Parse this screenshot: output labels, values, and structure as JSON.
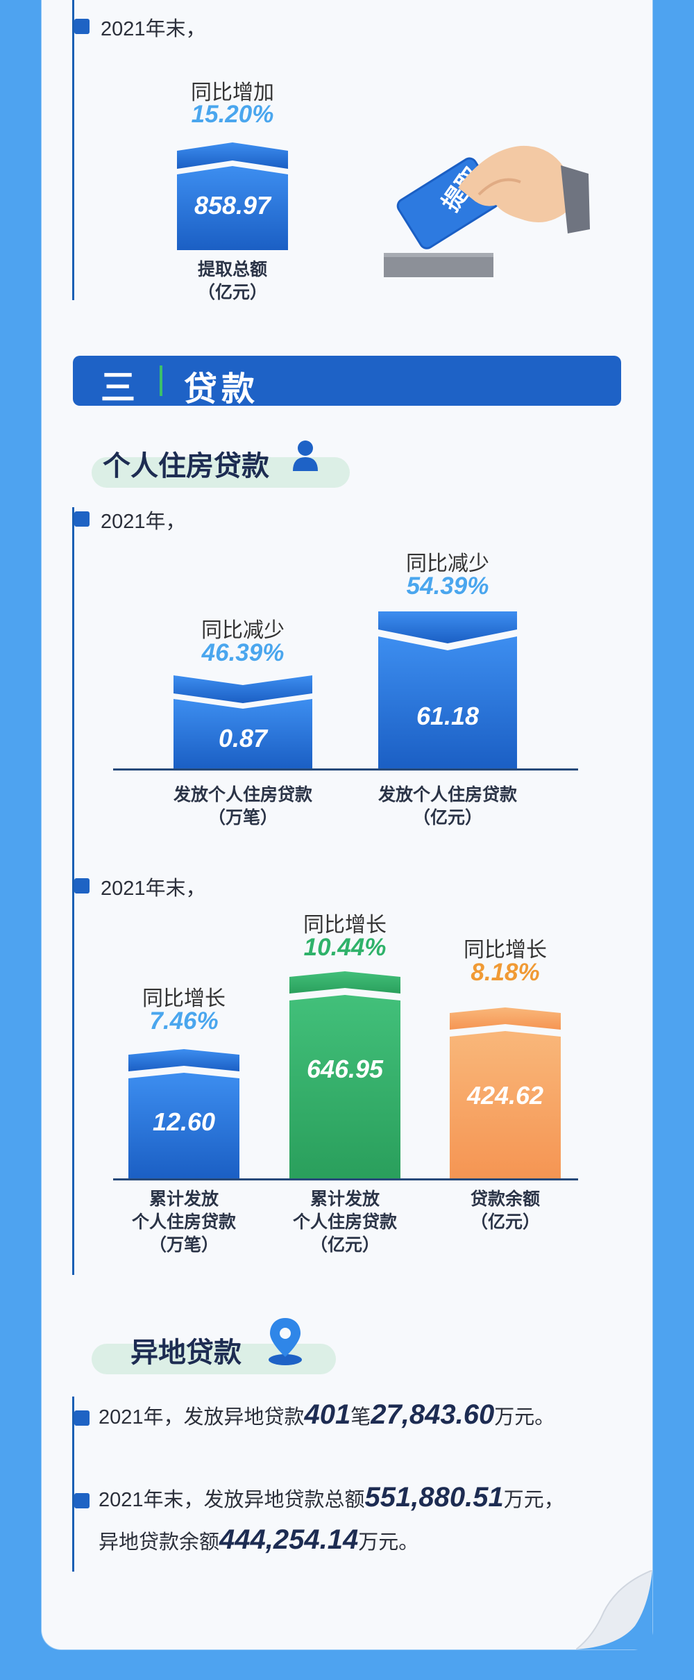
{
  "colors": {
    "background": "#4ea3f0",
    "accent_blue": "#1e62c6",
    "green": "#36b56e",
    "orange": "#f6a061"
  },
  "top": {
    "bullet": "2021年末，",
    "change_label": "同比增加",
    "change_pct": "15.20%",
    "value": "858.97",
    "caption_line1": "提取总额",
    "caption_line2": "（亿元）",
    "card_label": "提取"
  },
  "section": {
    "number": "三",
    "title": "贷款"
  },
  "personal": {
    "heading": "个人住房贷款",
    "icon": "person-icon",
    "bullet": "2021年，",
    "bars": [
      {
        "change_label": "同比减少",
        "change_pct": "46.39%",
        "value": "0.87",
        "caption_line1": "发放个人住房贷款",
        "caption_line2": "（万笔）"
      },
      {
        "change_label": "同比减少",
        "change_pct": "54.39%",
        "value": "61.18",
        "caption_line1": "发放个人住房贷款",
        "caption_line2": "（亿元）"
      }
    ]
  },
  "cumulative": {
    "bullet": "2021年末，",
    "bars": [
      {
        "change_label": "同比增长",
        "change_pct": "7.46%",
        "value": "12.60",
        "caption_line1": "累计发放",
        "caption_line2": "个人住房贷款",
        "caption_line3": "（万笔）"
      },
      {
        "change_label": "同比增长",
        "change_pct": "10.44%",
        "value": "646.95",
        "caption_line1": "累计发放",
        "caption_line2": "个人住房贷款",
        "caption_line3": "（亿元）"
      },
      {
        "change_label": "同比增长",
        "change_pct": "8.18%",
        "value": "424.62",
        "caption_line1": "贷款余额",
        "caption_line2": "（亿元）"
      }
    ]
  },
  "remote": {
    "heading": "异地贷款",
    "icon": "location-pin-icon",
    "line1_prefix": "2021年，发放异地贷款",
    "line1_count": "401",
    "line1_mid": "笔",
    "line1_amount": "27,843.60",
    "line1_suffix": "万元。",
    "line2_prefix": "2021年末，发放异地贷款总额",
    "line2_amount": "551,880.51",
    "line2_suffix": "万元，",
    "line3_prefix": "异地贷款余额",
    "line3_amount": "444,254.14",
    "line3_suffix": "万元。"
  }
}
